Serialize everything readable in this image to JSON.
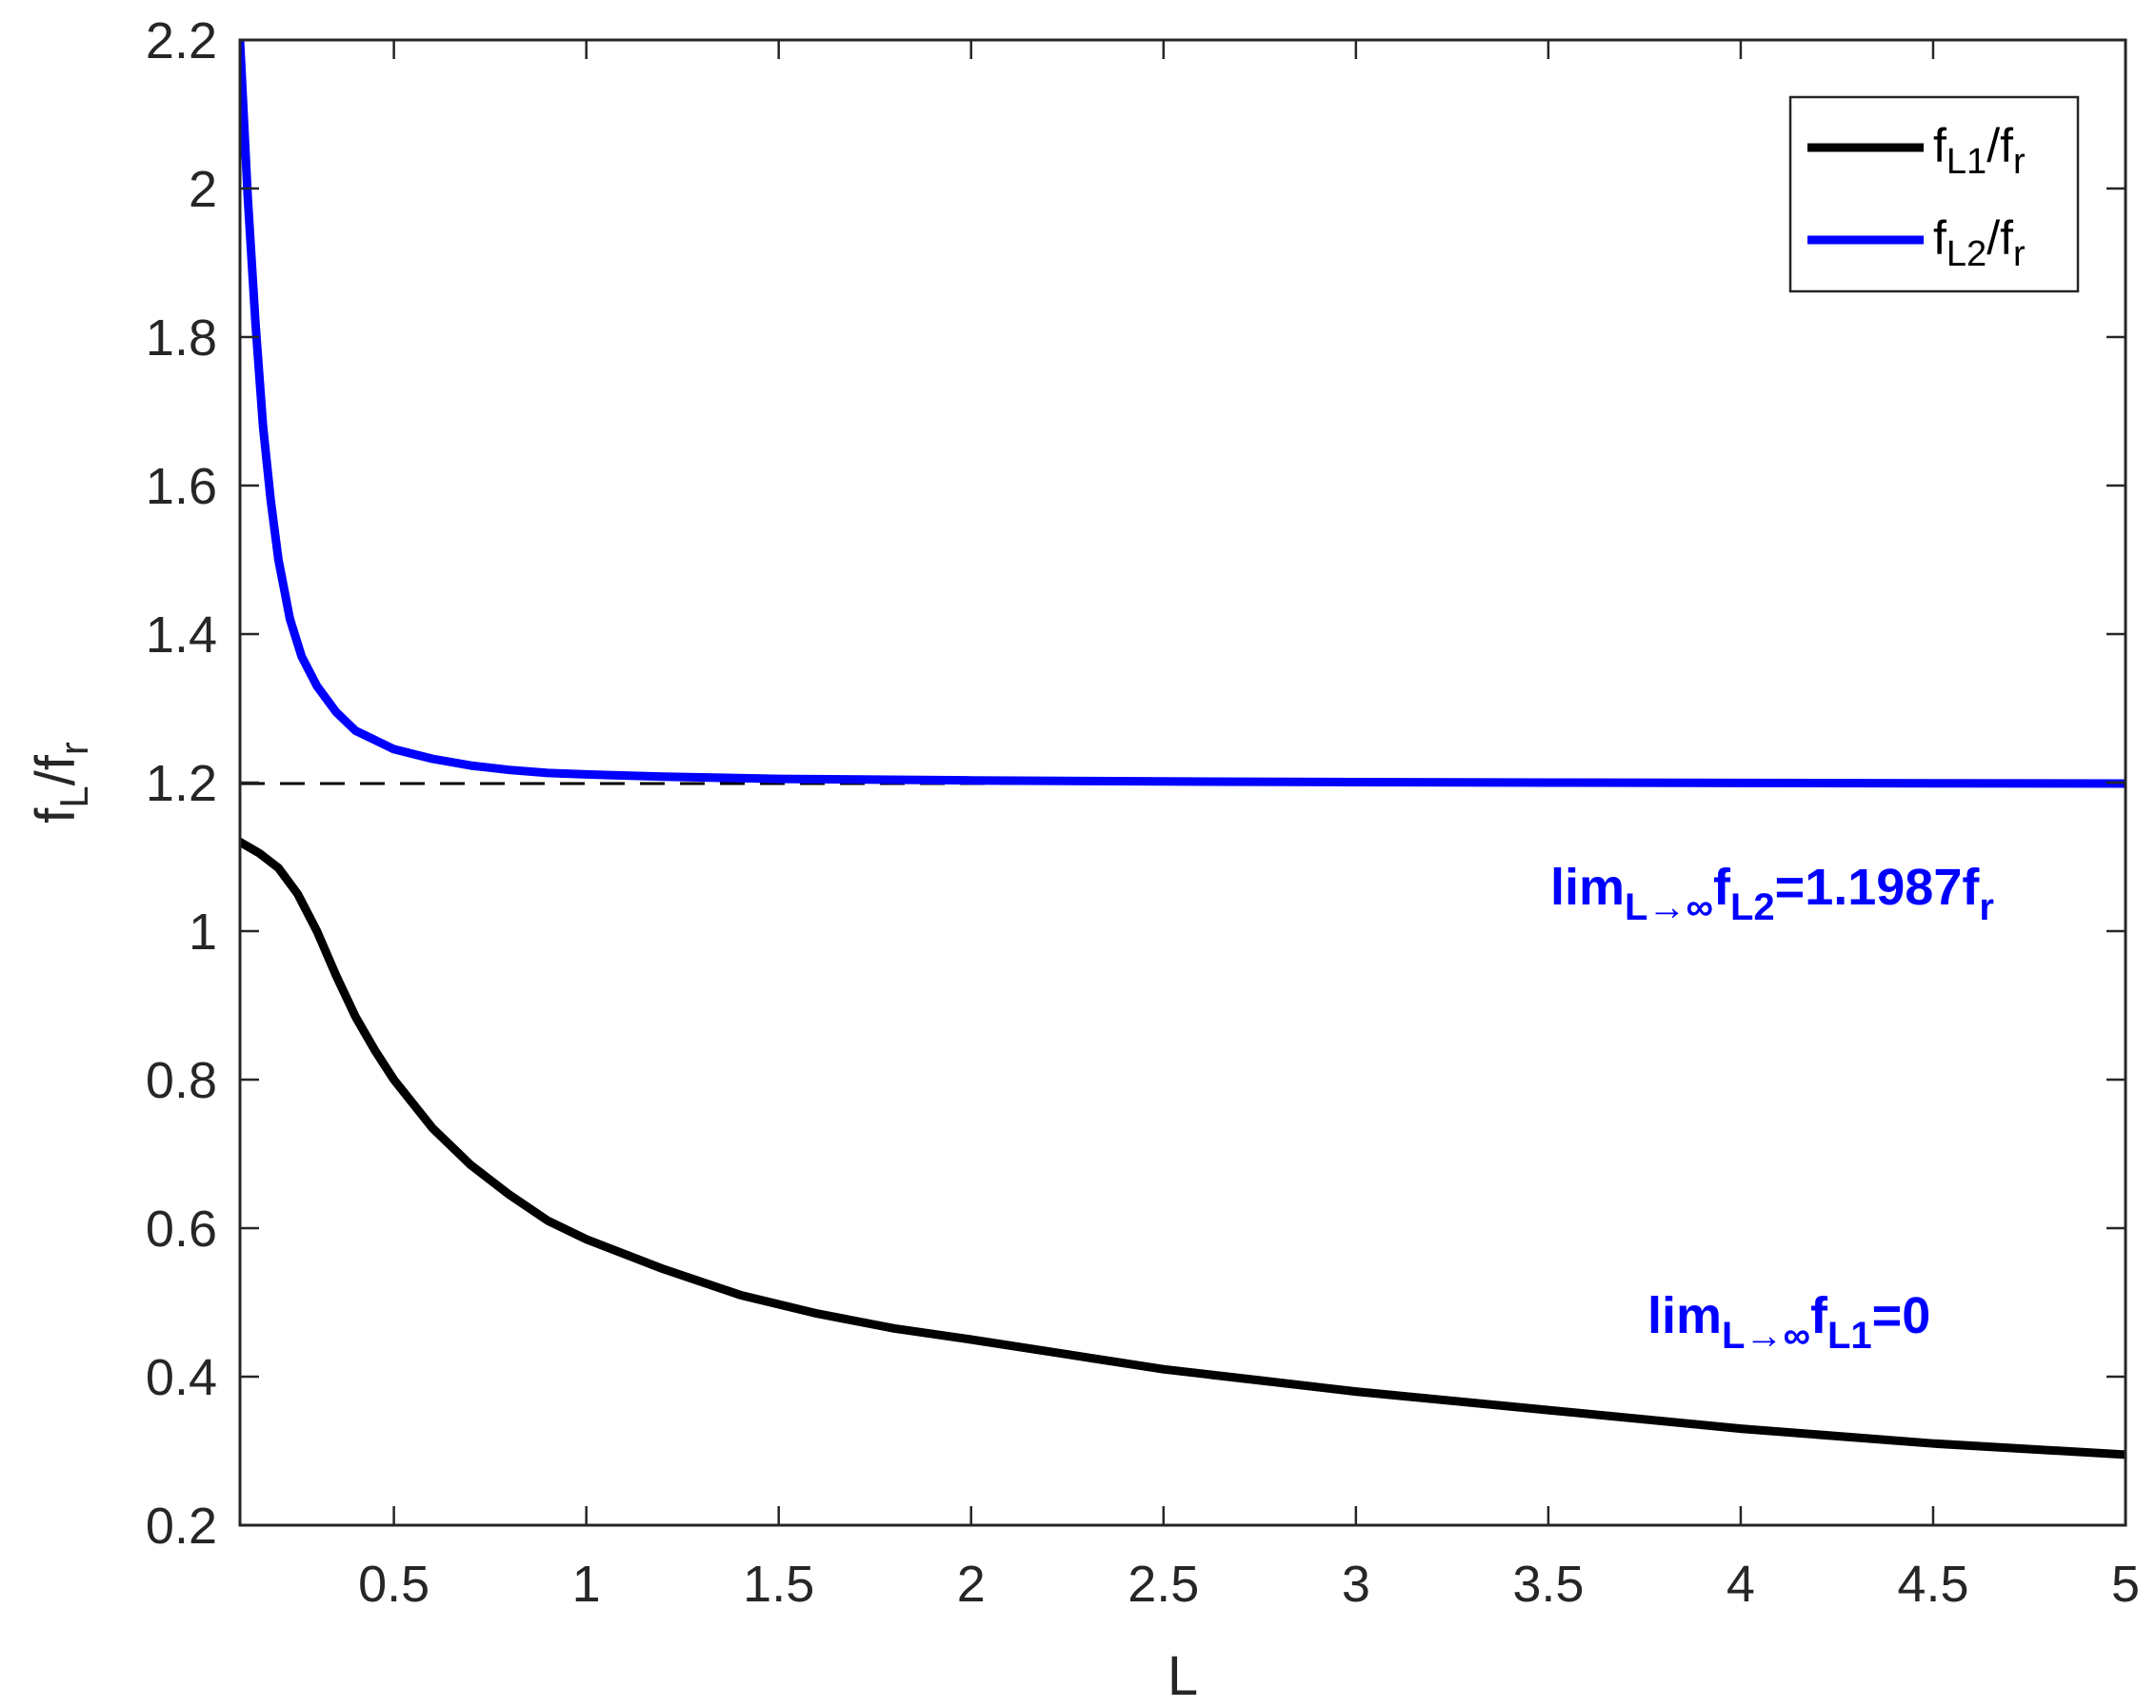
{
  "chart_data": {
    "type": "line",
    "xlabel": "L",
    "ylabel": {
      "base": "f",
      "sub": "L",
      "sep": "/f",
      "sub2": "r"
    },
    "xlim": [
      0.1,
      5
    ],
    "ylim": [
      0.2,
      2.2
    ],
    "xticks": [
      "0.5",
      "1",
      "1.5",
      "2",
      "2.5",
      "3",
      "3.5",
      "4",
      "4.5",
      "5"
    ],
    "xtick_values": [
      0.5,
      1,
      1.5,
      2,
      2.5,
      3,
      3.5,
      4,
      4.5,
      5
    ],
    "yticks": [
      "0.2",
      "0.4",
      "0.6",
      "0.8",
      "1",
      "1.2",
      "1.4",
      "1.6",
      "1.8",
      "2",
      "2.2"
    ],
    "ytick_values": [
      0.2,
      0.4,
      0.6,
      0.8,
      1.0,
      1.2,
      1.4,
      1.6,
      1.8,
      2.0,
      2.2
    ],
    "grid": false,
    "legend_position": "top-right",
    "reference_line": {
      "y": 1.1987,
      "style": "dashed",
      "color": "#000000"
    },
    "series": [
      {
        "name": {
          "base": "f",
          "sub": "L1",
          "tail": "/f",
          "sub2": "r"
        },
        "color": "#000000",
        "x": [
          0.1,
          0.15,
          0.2,
          0.25,
          0.3,
          0.35,
          0.4,
          0.45,
          0.5,
          0.6,
          0.7,
          0.8,
          0.9,
          1.0,
          1.2,
          1.4,
          1.6,
          1.8,
          2.0,
          2.25,
          2.5,
          2.75,
          3.0,
          3.5,
          4.0,
          4.5,
          5.0
        ],
        "y": [
          1.12,
          1.105,
          1.085,
          1.05,
          1.0,
          0.94,
          0.885,
          0.84,
          0.8,
          0.735,
          0.685,
          0.645,
          0.61,
          0.585,
          0.545,
          0.51,
          0.485,
          0.465,
          0.45,
          0.43,
          0.41,
          0.395,
          0.38,
          0.355,
          0.33,
          0.31,
          0.295
        ]
      },
      {
        "name": {
          "base": "f",
          "sub": "L2",
          "tail": "/f",
          "sub2": "r"
        },
        "color": "#0000ff",
        "x": [
          0.1,
          0.12,
          0.14,
          0.16,
          0.18,
          0.2,
          0.23,
          0.26,
          0.3,
          0.35,
          0.4,
          0.5,
          0.6,
          0.7,
          0.8,
          0.9,
          1.0,
          1.2,
          1.5,
          2.0,
          2.5,
          3.0,
          3.5,
          4.0,
          4.5,
          5.0
        ],
        "y": [
          2.2,
          1.99,
          1.82,
          1.68,
          1.58,
          1.5,
          1.42,
          1.37,
          1.33,
          1.295,
          1.27,
          1.245,
          1.232,
          1.223,
          1.217,
          1.213,
          1.211,
          1.208,
          1.205,
          1.203,
          1.2015,
          1.2007,
          1.2,
          1.1995,
          1.199,
          1.1987
        ]
      }
    ],
    "annotations": [
      {
        "color": "#0000ff",
        "base": "lim",
        "sub": "L→∞",
        "mid": "f",
        "sub2": "L2",
        "tail": "=1.1987f",
        "sub3": "r"
      },
      {
        "color": "#0000ff",
        "base": "lim",
        "sub": "L→∞",
        "mid": "f",
        "sub2": "L1",
        "tail": "=0"
      }
    ]
  }
}
